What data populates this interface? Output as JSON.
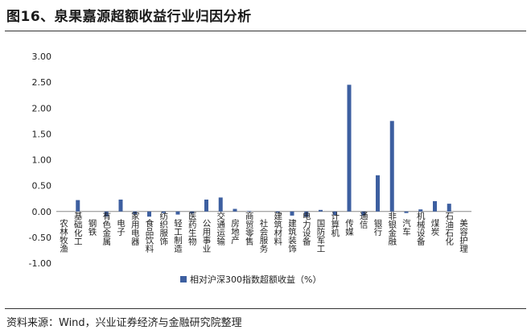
{
  "header": {
    "title": "图16、泉果嘉源超额收益行业归因分析"
  },
  "footer": {
    "source": "资料来源：Wind，兴业证券经济与金融研究院整理"
  },
  "chart_data": {
    "type": "bar",
    "title": "",
    "xlabel": "",
    "ylabel": "",
    "ylim": [
      -1.0,
      3.0
    ],
    "yticks": [
      "3.00",
      "2.50",
      "2.00",
      "1.50",
      "1.00",
      "0.50",
      "0.00",
      "-0.50",
      "-1.00"
    ],
    "grid": false,
    "legend_position": "bottom",
    "categories": [
      "农林牧渔",
      "基础化工",
      "钢铁",
      "有色金属",
      "电子",
      "家用电器",
      "食品饮料",
      "纺织服饰",
      "轻工制造",
      "医药生物",
      "公用事业",
      "交通运输",
      "房地产",
      "商贸零售",
      "社会服务",
      "建筑材料",
      "建筑装饰",
      "电力设备",
      "国防军工",
      "计算机",
      "传媒",
      "通信",
      "银行",
      "非银金融",
      "汽车",
      "机械设备",
      "煤炭",
      "石油石化",
      "美容护理"
    ],
    "series": [
      {
        "name": "相对沪深300指数超额收益（%）",
        "color": "#3d5fa0",
        "values": [
          0.0,
          0.22,
          0.0,
          -0.1,
          0.23,
          -0.05,
          -0.1,
          -0.03,
          -0.06,
          -0.04,
          0.23,
          0.27,
          0.05,
          0.01,
          0.0,
          -0.02,
          -0.08,
          -0.1,
          0.03,
          -0.07,
          2.45,
          -0.08,
          0.7,
          1.75,
          -0.03,
          0.04,
          0.2,
          0.15,
          0.0
        ]
      }
    ]
  }
}
